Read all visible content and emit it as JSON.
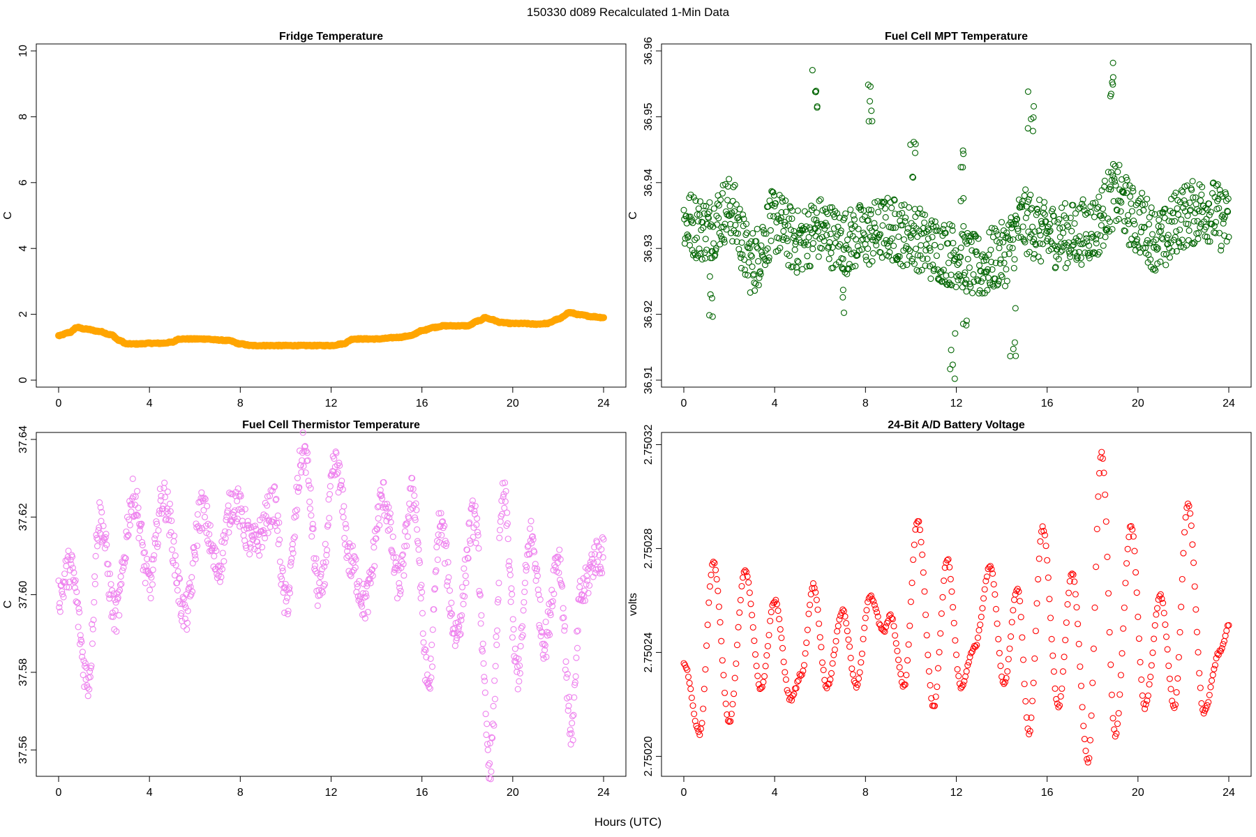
{
  "figure": {
    "title": "150330   d089   Recalculated 1-Min Data",
    "xlabel": "Hours (UTC)"
  },
  "chart_data": [
    {
      "type": "scatter",
      "title": "Fridge Temperature",
      "xlabel": "Hours (UTC)",
      "ylabel": "C",
      "xlim": [
        0,
        24
      ],
      "ylim": [
        0,
        10
      ],
      "xticks": [
        "0",
        "4",
        "8",
        "12",
        "16",
        "20",
        "24"
      ],
      "yticks": [
        "0",
        "2",
        "4",
        "6",
        "8",
        "10"
      ],
      "color": "#FFA500",
      "marker": "filled-thick",
      "series": [
        {
          "name": "Fridge Temperature",
          "x": [
            0,
            0.5,
            0.8,
            1.2,
            1.8,
            2.3,
            2.7,
            3.0,
            3.5,
            4.0,
            4.5,
            5.0,
            5.3,
            5.8,
            6.5,
            7.0,
            7.5,
            8.0,
            8.5,
            9.0,
            10.0,
            11.0,
            12.0,
            12.5,
            13.0,
            14.0,
            15.0,
            15.5,
            16.0,
            16.5,
            17.0,
            17.5,
            18.0,
            18.5,
            18.8,
            19.0,
            19.5,
            20.0,
            20.5,
            21.0,
            21.5,
            22.0,
            22.5,
            23.0,
            23.5,
            24.0
          ],
          "y": [
            1.35,
            1.45,
            1.6,
            1.55,
            1.48,
            1.38,
            1.2,
            1.1,
            1.1,
            1.12,
            1.12,
            1.15,
            1.25,
            1.25,
            1.25,
            1.22,
            1.2,
            1.1,
            1.05,
            1.05,
            1.05,
            1.05,
            1.05,
            1.1,
            1.25,
            1.25,
            1.3,
            1.35,
            1.5,
            1.6,
            1.65,
            1.65,
            1.65,
            1.8,
            1.9,
            1.85,
            1.75,
            1.72,
            1.72,
            1.7,
            1.72,
            1.85,
            2.05,
            1.98,
            1.93,
            1.9
          ]
        }
      ]
    },
    {
      "type": "scatter",
      "title": "Fuel Cell MPT Temperature",
      "xlabel": "Hours (UTC)",
      "ylabel": "C",
      "xlim": [
        0,
        24
      ],
      "ylim": [
        36.91,
        36.96
      ],
      "xticks": [
        "0",
        "4",
        "8",
        "12",
        "16",
        "20",
        "24"
      ],
      "yticks": [
        "36.91",
        "36.92",
        "36.93",
        "36.94",
        "36.95",
        "36.96"
      ],
      "color": "#006400",
      "marker": "open-circle",
      "series": [
        {
          "name": "Fuel Cell MPT Temperature",
          "baseline_x": [
            0,
            1,
            2,
            3,
            4,
            5,
            6,
            7,
            8,
            9,
            10,
            11,
            12,
            13,
            14,
            15,
            16,
            17,
            18,
            19,
            20,
            21,
            22,
            23,
            24
          ],
          "baseline_y": [
            36.934,
            36.933,
            36.936,
            36.928,
            36.934,
            36.931,
            36.933,
            36.931,
            36.932,
            36.933,
            36.932,
            36.93,
            36.929,
            36.927,
            36.929,
            36.934,
            36.932,
            36.932,
            36.933,
            36.938,
            36.934,
            36.931,
            36.935,
            36.936,
            36.934
          ],
          "spread": 0.005,
          "peaks_x": [
            5.8,
            8.2,
            10.1,
            12.2,
            15.3,
            18.9
          ],
          "peaks_y": [
            36.958,
            36.956,
            36.948,
            36.945,
            36.954,
            36.959
          ],
          "lows_x": [
            1.2,
            7.1,
            11.8,
            12.4,
            14.5
          ],
          "lows_y": [
            36.919,
            36.919,
            36.91,
            36.918,
            36.913
          ]
        }
      ]
    },
    {
      "type": "scatter",
      "title": "Fuel Cell Thermistor Temperature",
      "xlabel": "Hours (UTC)",
      "ylabel": "C",
      "xlim": [
        0,
        24
      ],
      "ylim": [
        37.555,
        37.64
      ],
      "xticks": [
        "0",
        "4",
        "8",
        "12",
        "16",
        "20",
        "24"
      ],
      "yticks": [
        "37.56",
        "37.58",
        "37.60",
        "37.62",
        "37.64"
      ],
      "color": "#EE82EE",
      "marker": "open-circle",
      "series": [
        {
          "name": "Fuel Cell Thermistor Temperature",
          "baseline_x": [
            0,
            0.5,
            1.3,
            1.8,
            2.5,
            3.3,
            4.0,
            4.6,
            5.6,
            6.3,
            7.0,
            7.7,
            8.6,
            9.5,
            10.0,
            10.8,
            11.5,
            12.2,
            12.9,
            13.5,
            14.3,
            15.0,
            15.6,
            16.3,
            16.8,
            17.5,
            18.3,
            19.0,
            19.6,
            20.2,
            20.8,
            21.4,
            22.0,
            22.6,
            23.0,
            23.7
          ],
          "baseline_y": [
            37.6,
            37.607,
            37.578,
            37.62,
            37.595,
            37.625,
            37.603,
            37.625,
            37.595,
            37.622,
            37.607,
            37.624,
            37.613,
            37.623,
            37.598,
            37.637,
            37.6,
            37.633,
            37.608,
            37.598,
            37.625,
            37.603,
            37.626,
            37.577,
            37.618,
            37.59,
            37.62,
            37.557,
            37.625,
            37.58,
            37.615,
            37.588,
            37.61,
            37.565,
            37.6,
            37.61
          ],
          "spread": 0.005
        }
      ]
    },
    {
      "type": "scatter",
      "title": "24-Bit A/D Battery Voltage",
      "xlabel": "Hours (UTC)",
      "ylabel": "volts",
      "xlim": [
        0,
        24
      ],
      "ylim": [
        2.750195,
        2.750322
      ],
      "xticks": [
        "0",
        "4",
        "8",
        "12",
        "16",
        "20",
        "24"
      ],
      "yticks": [
        "2.75020",
        "2.75024",
        "2.75028",
        "2.75032"
      ],
      "color": "#FF0000",
      "marker": "open-circle",
      "series": [
        {
          "name": "24-Bit A/D Battery Voltage",
          "x": [
            0,
            0.7,
            1.3,
            2.0,
            2.7,
            3.4,
            4.0,
            4.7,
            5.2,
            5.7,
            6.3,
            7.0,
            7.6,
            8.2,
            8.8,
            9.1,
            9.7,
            10.3,
            11.0,
            11.6,
            12.2,
            12.8,
            13.5,
            14.1,
            14.7,
            15.2,
            15.8,
            16.5,
            17.1,
            17.8,
            18.4,
            19.0,
            19.7,
            20.3,
            21.0,
            21.6,
            22.2,
            22.9,
            23.6,
            24.0
          ],
          "y": [
            2.750236,
            2.750209,
            2.750275,
            2.750213,
            2.750272,
            2.750226,
            2.75026,
            2.750222,
            2.750232,
            2.750266,
            2.750227,
            2.750256,
            2.750227,
            2.750262,
            2.750248,
            2.750254,
            2.750227,
            2.750291,
            2.750219,
            2.750276,
            2.750227,
            2.750242,
            2.750273,
            2.750228,
            2.750265,
            2.750209,
            2.750288,
            2.750219,
            2.750271,
            2.750198,
            2.750317,
            2.750208,
            2.750289,
            2.750219,
            2.750262,
            2.750219,
            2.750297,
            2.750217,
            2.75024,
            2.75025
          ]
        }
      ]
    }
  ]
}
